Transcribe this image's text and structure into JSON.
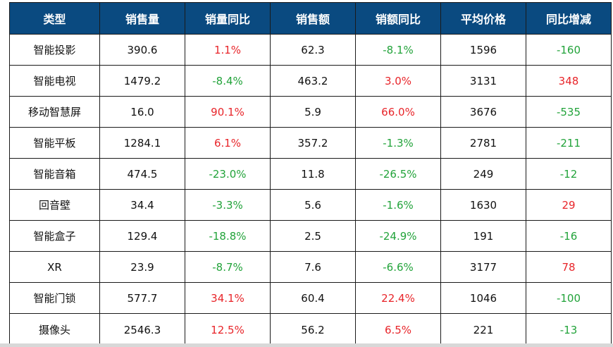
{
  "table": {
    "headers": [
      "类型",
      "销售量",
      "销量同比",
      "销售额",
      "销额同比",
      "平均价格",
      "同比增减"
    ],
    "rows": [
      {
        "type": "智能投影",
        "volume": "390.6",
        "volume_yoy": "1.1%",
        "revenue": "62.3",
        "revenue_yoy": "-8.1%",
        "avg_price": "1596",
        "price_change": "-160"
      },
      {
        "type": "智能电视",
        "volume": "1479.2",
        "volume_yoy": "-8.4%",
        "revenue": "463.2",
        "revenue_yoy": "3.0%",
        "avg_price": "3131",
        "price_change": "348"
      },
      {
        "type": "移动智慧屏",
        "volume": "16.0",
        "volume_yoy": "90.1%",
        "revenue": "5.9",
        "revenue_yoy": "66.0%",
        "avg_price": "3676",
        "price_change": "-535"
      },
      {
        "type": "智能平板",
        "volume": "1284.1",
        "volume_yoy": "6.1%",
        "revenue": "357.2",
        "revenue_yoy": "-1.3%",
        "avg_price": "2781",
        "price_change": "-211"
      },
      {
        "type": "智能音箱",
        "volume": "474.5",
        "volume_yoy": "-23.0%",
        "revenue": "11.8",
        "revenue_yoy": "-26.5%",
        "avg_price": "249",
        "price_change": "-12"
      },
      {
        "type": "回音壁",
        "volume": "34.4",
        "volume_yoy": "-3.3%",
        "revenue": "5.6",
        "revenue_yoy": "-1.6%",
        "avg_price": "1630",
        "price_change": "29"
      },
      {
        "type": "智能盒子",
        "volume": "129.4",
        "volume_yoy": "-18.8%",
        "revenue": "2.5",
        "revenue_yoy": "-24.9%",
        "avg_price": "191",
        "price_change": "-16"
      },
      {
        "type": "XR",
        "volume": "23.9",
        "volume_yoy": "-8.7%",
        "revenue": "7.6",
        "revenue_yoy": "-6.6%",
        "avg_price": "3177",
        "price_change": "78"
      },
      {
        "type": "智能门锁",
        "volume": "577.7",
        "volume_yoy": "34.1%",
        "revenue": "60.4",
        "revenue_yoy": "22.4%",
        "avg_price": "1046",
        "price_change": "-100"
      },
      {
        "type": "摄像头",
        "volume": "2546.3",
        "volume_yoy": "12.5%",
        "revenue": "56.2",
        "revenue_yoy": "6.5%",
        "avg_price": "221",
        "price_change": "-13"
      }
    ]
  },
  "colors": {
    "header_bg": "#0a4a80",
    "header_text": "#ffffff",
    "positive": "#e8252a",
    "negative": "#22a33a",
    "border": "#1a1a1a"
  }
}
